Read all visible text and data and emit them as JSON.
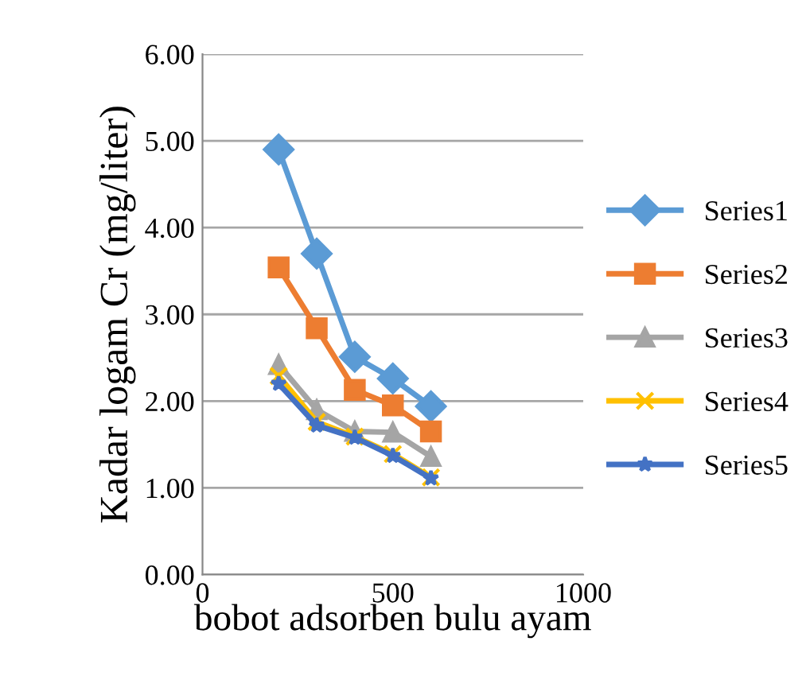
{
  "chart_data": {
    "type": "line",
    "xlabel": "bobot adsorben bulu ayam",
    "ylabel": "Kadar logam Cr (mg/liter)",
    "x": [
      200,
      300,
      400,
      500,
      600
    ],
    "xlim": [
      0,
      1000
    ],
    "xticks": [
      0,
      500,
      1000
    ],
    "ylim": [
      0,
      6
    ],
    "yticks": [
      {
        "value": 0,
        "label": "0.00"
      },
      {
        "value": 1,
        "label": "1.00"
      },
      {
        "value": 2,
        "label": "2.00"
      },
      {
        "value": 3,
        "label": "3.00"
      },
      {
        "value": 4,
        "label": "4.00"
      },
      {
        "value": 5,
        "label": "5.00"
      },
      {
        "value": 6,
        "label": "6.00"
      }
    ],
    "grid": "y",
    "legend": "right",
    "line_style": "solid",
    "series": [
      {
        "name": "Series1",
        "color": "#5b9bd5",
        "marker": "diamond",
        "values": [
          4.9,
          3.7,
          2.51,
          2.26,
          1.94
        ]
      },
      {
        "name": "Series2",
        "color": "#ed7d31",
        "marker": "square",
        "values": [
          3.54,
          2.84,
          2.13,
          1.95,
          1.65
        ]
      },
      {
        "name": "Series3",
        "color": "#a5a5a5",
        "marker": "triangle",
        "values": [
          2.42,
          1.9,
          1.65,
          1.64,
          1.36
        ]
      },
      {
        "name": "Series4",
        "color": "#ffc000",
        "marker": "cross",
        "values": [
          2.29,
          1.76,
          1.59,
          1.39,
          1.12
        ]
      },
      {
        "name": "Series5",
        "color": "#4472c4",
        "marker": "star",
        "values": [
          2.2,
          1.72,
          1.58,
          1.37,
          1.11
        ]
      }
    ]
  }
}
